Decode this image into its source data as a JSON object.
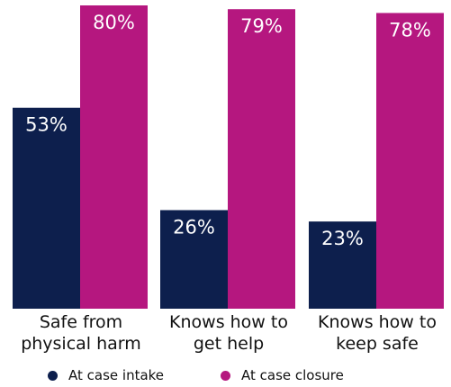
{
  "chart_data": {
    "type": "bar",
    "categories": [
      [
        "Safe from",
        "physical harm"
      ],
      [
        "Knows how to",
        "get help"
      ],
      [
        "Knows how to",
        "keep safe"
      ]
    ],
    "series": [
      {
        "name": "At case intake",
        "values": [
          53,
          26,
          23
        ],
        "labels": [
          "53%",
          "26%",
          "23%"
        ],
        "color": "#0d1f4d"
      },
      {
        "name": "At case closure",
        "values": [
          80,
          79,
          78
        ],
        "labels": [
          "80%",
          "79%",
          "78%"
        ],
        "color": "#b5177f"
      }
    ],
    "ylim": [
      0,
      80
    ],
    "grid": false,
    "legend_position": "bottom"
  }
}
